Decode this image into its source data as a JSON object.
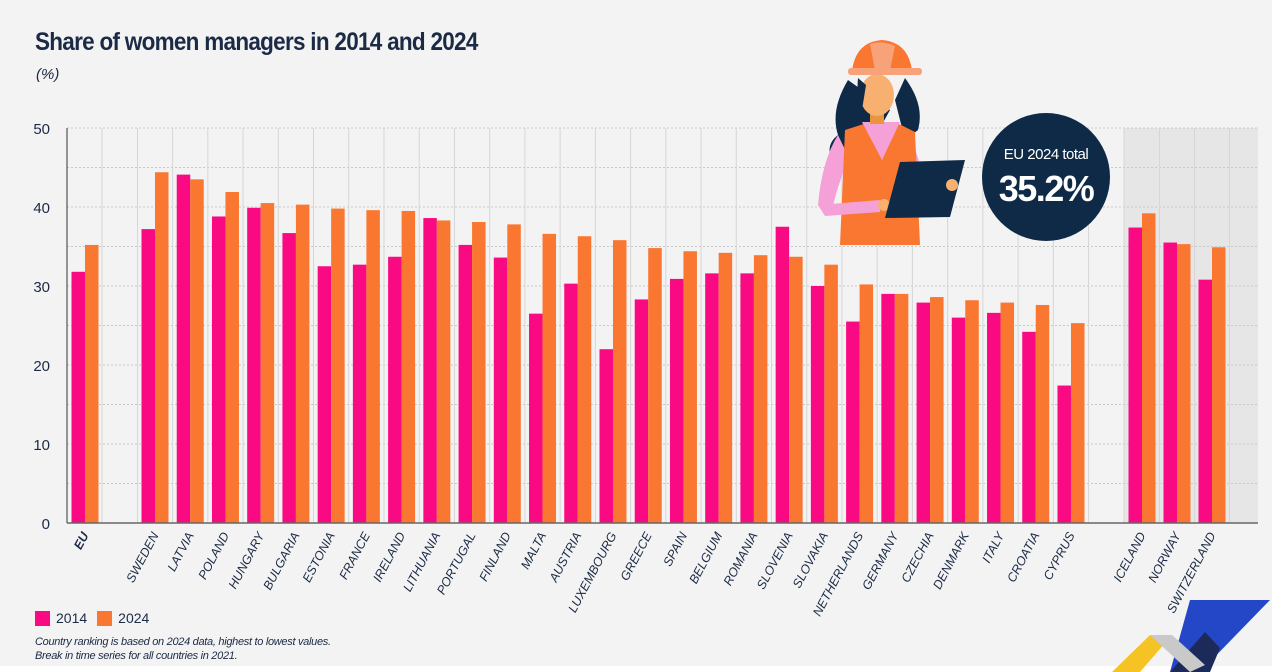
{
  "colors": {
    "s2014": "#fa0a82",
    "s2024": "#f97731",
    "text": "#1b2a45",
    "badge": "#0e2a47",
    "grid": "#cfcfcf",
    "shade": "#e6e6e6"
  },
  "badge": {
    "label": "EU 2024 total",
    "value": "35.2%"
  },
  "illustration": {
    "icon": "woman-manager-with-hard-hat-and-tablet-illustration"
  },
  "logo": {
    "icon": "eurostat-chevron-logo"
  },
  "legend": {
    "items": [
      "2014",
      "2024"
    ]
  },
  "footnotes": [
    "Country ranking is based on 2024 data, highest to lowest values.",
    "Break in time series for all countries in 2021."
  ],
  "chart_data": {
    "type": "bar",
    "title": "Share of women managers in 2014 and 2024",
    "ylabel": "(%)",
    "ylim": [
      0,
      50
    ],
    "yticks": [
      0,
      10,
      20,
      30,
      40,
      50
    ],
    "grid": true,
    "legend_position": "bottom-left",
    "categories": [
      "EU",
      "SWEDEN",
      "LATVIA",
      "POLAND",
      "HUNGARY",
      "BULGARIA",
      "ESTONIA",
      "FRANCE",
      "IRELAND",
      "LITHUANIA",
      "PORTUGAL",
      "FINLAND",
      "MALTA",
      "AUSTRIA",
      "LUXEMBOURG",
      "GREECE",
      "SPAIN",
      "BELGIUM",
      "ROMANIA",
      "SLOVENIA",
      "SLOVAKIA",
      "NETHERLANDS",
      "GERMANY",
      "CZECHIA",
      "DENMARK",
      "ITALY",
      "CROATIA",
      "CYPRUS",
      "ICELAND",
      "NORWAY",
      "SWITZERLAND"
    ],
    "series": [
      {
        "name": "2014",
        "values": [
          31.8,
          37.2,
          44.1,
          38.8,
          39.9,
          36.7,
          32.5,
          32.7,
          33.7,
          38.6,
          35.2,
          33.6,
          26.5,
          30.3,
          22.0,
          28.3,
          30.9,
          31.6,
          31.6,
          37.5,
          30.0,
          25.5,
          29.0,
          27.9,
          26.0,
          26.6,
          24.2,
          17.4,
          37.4,
          35.5,
          30.8
        ]
      },
      {
        "name": "2024",
        "values": [
          35.2,
          44.4,
          43.5,
          41.9,
          40.5,
          40.3,
          39.8,
          39.6,
          39.5,
          38.3,
          38.1,
          37.8,
          36.6,
          36.3,
          35.8,
          34.8,
          34.4,
          34.2,
          33.9,
          33.7,
          32.7,
          30.2,
          29.0,
          28.6,
          28.2,
          27.9,
          27.6,
          25.3,
          39.2,
          35.3,
          34.9
        ]
      }
    ]
  }
}
